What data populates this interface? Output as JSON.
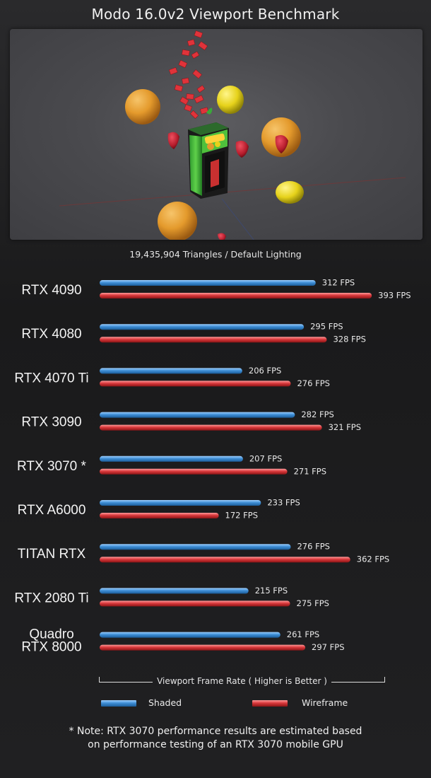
{
  "title": "Modo 16.0v2 Viewport Benchmark",
  "subtitle": "19,435,904 Triangles   /   Default Lighting",
  "axis_caption": "Viewport Frame Rate ( Higher is Better )",
  "legend": {
    "shaded": "Shaded",
    "wireframe": "Wireframe"
  },
  "note": {
    "line1": "* Note: RTX 3070 performance results are estimated based",
    "line2": "on performance testing of an RTX 3070 mobile GPU"
  },
  "colors": {
    "shaded": "#3f8fd6",
    "wireframe": "#d9393c",
    "background": "#1c1c1e"
  },
  "viewport_image": {
    "description_icon": "fruit-scene-render",
    "box_logo_text": "Smoothie"
  },
  "chart_data": {
    "type": "bar",
    "orientation": "horizontal",
    "categories": [
      "RTX 4090",
      "RTX 4080",
      "RTX 4070 Ti",
      "RTX 3090",
      "RTX 3070 *",
      "RTX A6000",
      "TITAN RTX",
      "RTX 2080 Ti",
      "Quadro RTX 8000"
    ],
    "series": [
      {
        "name": "Shaded",
        "values": [
          312,
          295,
          206,
          282,
          207,
          233,
          276,
          215,
          261
        ]
      },
      {
        "name": "Wireframe",
        "values": [
          393,
          328,
          276,
          321,
          271,
          172,
          362,
          275,
          297
        ]
      }
    ],
    "value_suffix": " FPS",
    "xlabel": "Viewport Frame Rate ( Higher is Better )",
    "xlim": [
      0,
      400
    ],
    "grid": false,
    "legend_position": "bottom"
  }
}
